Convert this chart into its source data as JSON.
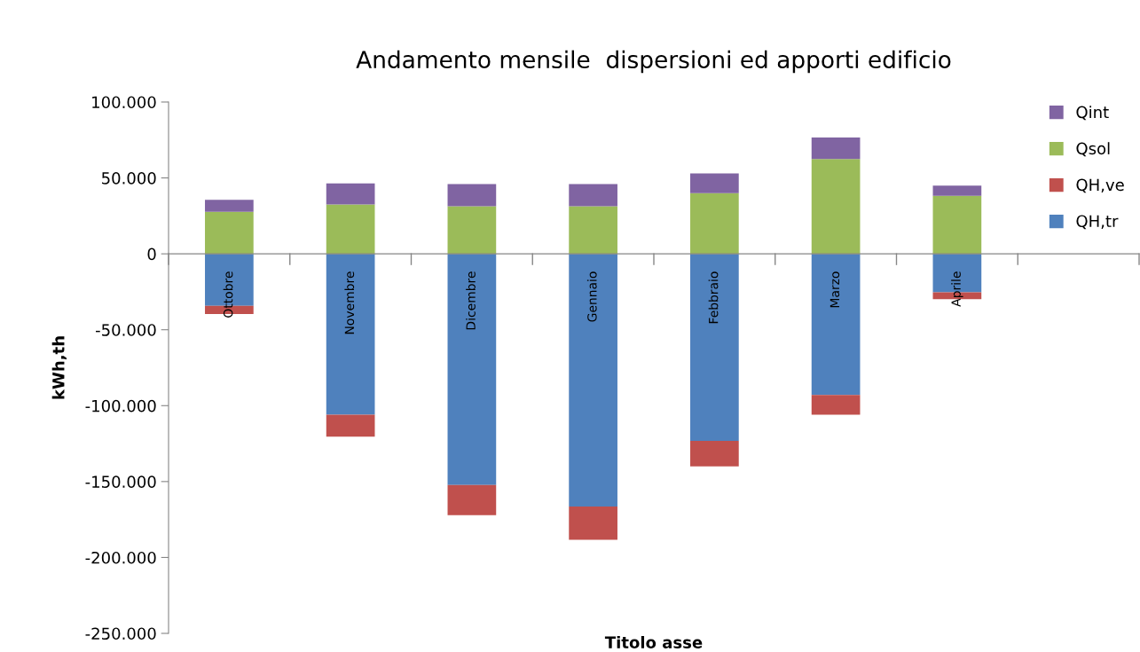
{
  "chart_data": {
    "type": "bar",
    "stacked": true,
    "title": "Andamento mensile  dispersioni ed apporti edificio",
    "xlabel": "Titolo asse",
    "ylabel": "kWh,th",
    "categories": [
      "Ottobre",
      "Novembre",
      "Dicembre",
      "Gennaio",
      "Febbraio",
      "Marzo",
      "Aprile",
      null
    ],
    "series": [
      {
        "name": "QH,tr",
        "color": "#4f81bd",
        "values": [
          -34200,
          -106000,
          -152300,
          -166500,
          -123200,
          -92900,
          -25400,
          null
        ]
      },
      {
        "name": "QH,ve",
        "color": "#c0504d",
        "values": [
          -5400,
          -14500,
          -19900,
          -21900,
          -16800,
          -13100,
          -4400,
          null
        ]
      },
      {
        "name": "Qsol",
        "color": "#9bbb59",
        "values": [
          27700,
          32500,
          31300,
          31300,
          40000,
          62400,
          38200,
          null
        ]
      },
      {
        "name": "Qint",
        "color": "#8064a2",
        "values": [
          7900,
          13900,
          14600,
          14600,
          13000,
          14200,
          6800,
          null
        ]
      }
    ],
    "ylim": [
      -250000,
      100000
    ],
    "yticks": [
      {
        "value": -250000,
        "label": "-250.000"
      },
      {
        "value": -200000,
        "label": "-200.000"
      },
      {
        "value": -150000,
        "label": "-150.000"
      },
      {
        "value": -100000,
        "label": "-100.000"
      },
      {
        "value": -50000,
        "label": "-50.000"
      },
      {
        "value": 0,
        "label": "0"
      },
      {
        "value": 50000,
        "label": "50.000"
      },
      {
        "value": 100000,
        "label": "100.000"
      }
    ],
    "grid": false,
    "legend": "top right"
  }
}
